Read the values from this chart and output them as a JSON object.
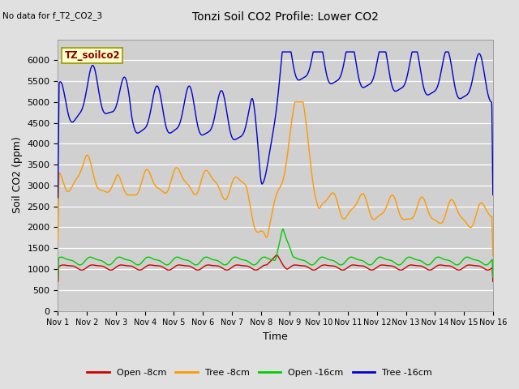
{
  "title": "Tonzi Soil CO2 Profile: Lower CO2",
  "top_left_note": "No data for f_T2_CO2_3",
  "box_label": "TZ_soilco2",
  "xlabel": "Time",
  "ylabel": "Soil CO2 (ppm)",
  "ylim": [
    0,
    6500
  ],
  "yticks": [
    0,
    500,
    1000,
    1500,
    2000,
    2500,
    3000,
    3500,
    4000,
    4500,
    5000,
    5500,
    6000
  ],
  "xtick_labels": [
    "Nov 1",
    "Nov 2",
    "Nov 3",
    "Nov 4",
    "Nov 5",
    "Nov 6",
    "Nov 7",
    "Nov 8",
    "Nov 9",
    "Nov 10",
    "Nov 11",
    "Nov 12",
    "Nov 13",
    "Nov 14",
    "Nov 15",
    "Nov 16"
  ],
  "bg_color": "#e0e0e0",
  "plot_bg_color": "#d0d0d0",
  "colors": {
    "open_8cm": "#cc0000",
    "tree_8cm": "#ff9900",
    "open_16cm": "#00cc00",
    "tree_16cm": "#0000cc"
  },
  "legend": [
    {
      "label": "Open -8cm",
      "color": "#cc0000"
    },
    {
      "label": "Tree -8cm",
      "color": "#ff9900"
    },
    {
      "label": "Open -16cm",
      "color": "#00cc00"
    },
    {
      "label": "Tree -16cm",
      "color": "#0000cc"
    }
  ]
}
